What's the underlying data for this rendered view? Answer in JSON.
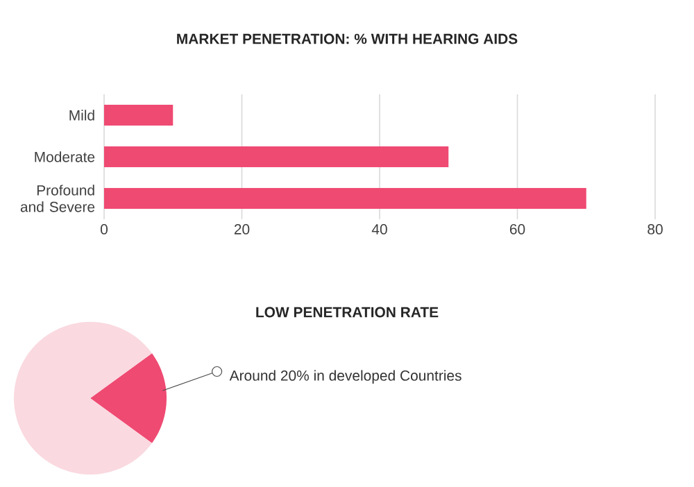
{
  "chart_data": [
    {
      "type": "bar",
      "title": "MARKET PENETRATION: % WITH HEARING AIDS",
      "orientation": "horizontal",
      "categories": [
        "Mild",
        "Moderate",
        "Profound and Severe"
      ],
      "values": [
        10,
        50,
        70
      ],
      "color": "#ef4a72",
      "xlim": [
        0,
        80
      ],
      "xticks": [
        0,
        20,
        40,
        60,
        80
      ],
      "grid": "x"
    },
    {
      "type": "pie",
      "title": "LOW PENETRATION RATE",
      "categories": [
        null,
        null
      ],
      "values": [
        20,
        80
      ],
      "colors": [
        "#ef4a72",
        "#fad9e0"
      ],
      "annotations": [
        "Around 20% in developed Countries"
      ]
    }
  ]
}
